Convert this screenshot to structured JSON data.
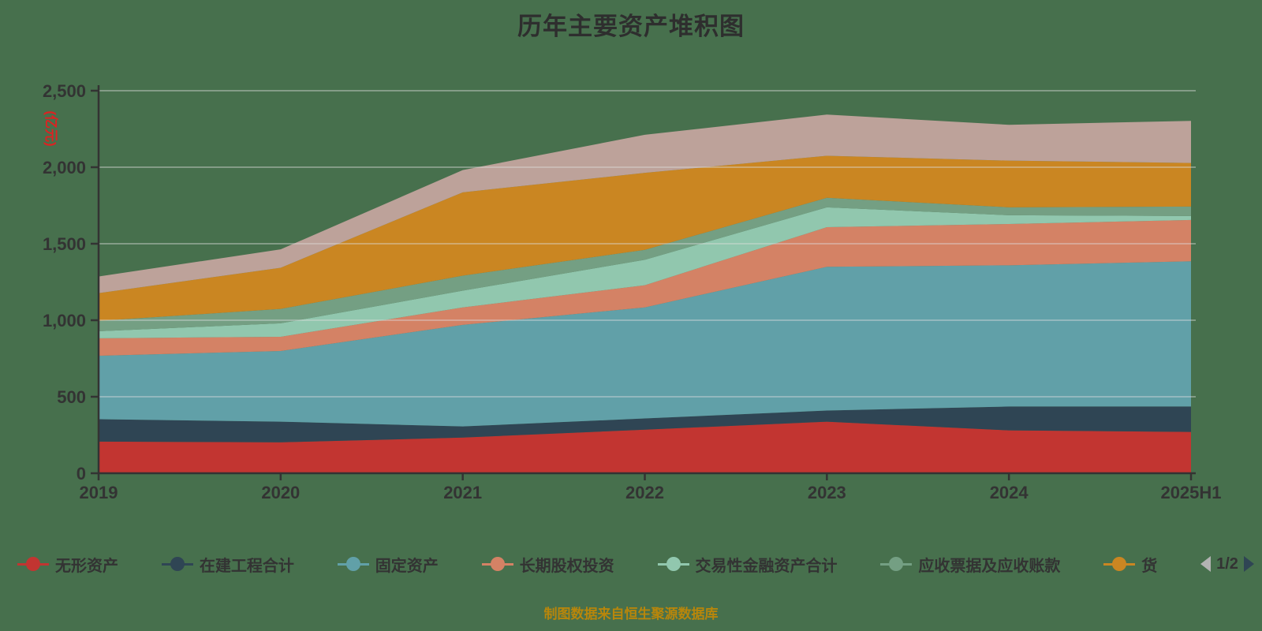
{
  "title": "历年主要资产堆积图",
  "footer": "制图数据来自恒生聚源数据库",
  "y_axis": {
    "name": "(亿元)",
    "tick_labels": [
      "0",
      "500",
      "1,000",
      "1,500",
      "2,000",
      "2,500"
    ],
    "tick_values": [
      0,
      500,
      1000,
      1500,
      2000,
      2500
    ],
    "max": 2500
  },
  "x_axis": {
    "labels": [
      "2019",
      "2020",
      "2021",
      "2022",
      "2023",
      "2024",
      "2025H1"
    ]
  },
  "legend": {
    "items": [
      {
        "label": "无形资产",
        "color": "#c23531"
      },
      {
        "label": "在建工程合计",
        "color": "#2f4554"
      },
      {
        "label": "固定资产",
        "color": "#61a0a8"
      },
      {
        "label": "长期股权投资",
        "color": "#d48265"
      },
      {
        "label": "交易性金融资产合计",
        "color": "#91c7ae"
      },
      {
        "label": "应收票据及应收账款",
        "color": "#749f83"
      },
      {
        "label": "货",
        "color": "#ca8622"
      }
    ],
    "page": "1/2"
  },
  "chart_data": {
    "type": "area",
    "stacked": true,
    "title": "历年主要资产堆积图",
    "ylabel": "(亿元)",
    "ylim": [
      0,
      2500
    ],
    "grid": true,
    "legend_position": "bottom",
    "x": [
      "2019",
      "2020",
      "2021",
      "2022",
      "2023",
      "2024",
      "2025H1"
    ],
    "series": [
      {
        "name": "无形资产",
        "color": "#c23531",
        "values": [
          207,
          202,
          233,
          285,
          337,
          280,
          270
        ]
      },
      {
        "name": "在建工程合计",
        "color": "#2f4554",
        "values": [
          146,
          135,
          73,
          73,
          73,
          156,
          166
        ]
      },
      {
        "name": "固定资产",
        "color": "#61a0a8",
        "values": [
          415,
          462,
          664,
          726,
          939,
          923,
          949
        ]
      },
      {
        "name": "长期股权投资",
        "color": "#d48265",
        "values": [
          114,
          93,
          114,
          145,
          259,
          270,
          270
        ]
      },
      {
        "name": "交易性金融资产合计",
        "color": "#91c7ae",
        "values": [
          46,
          88,
          109,
          166,
          130,
          57,
          26
        ]
      },
      {
        "name": "应收票据及应收账款",
        "color": "#749f83",
        "values": [
          68,
          94,
          98,
          65,
          62,
          52,
          62
        ]
      },
      {
        "name": "货",
        "color": "#ca8622",
        "values": [
          181,
          269,
          545,
          503,
          275,
          305,
          285
        ]
      },
      {
        "name": "",
        "color": "#bda29a",
        "values": [
          109,
          120,
          145,
          249,
          269,
          234,
          275
        ]
      }
    ]
  },
  "colors": {
    "background": "#47704d",
    "text": "#333333",
    "axis": "#333333",
    "grid": "#dcdcdc",
    "y_unit": "#dd2222",
    "footer": "#b8860b",
    "pager_prev": "#b3b3b3",
    "pager_next": "#2f4554"
  }
}
